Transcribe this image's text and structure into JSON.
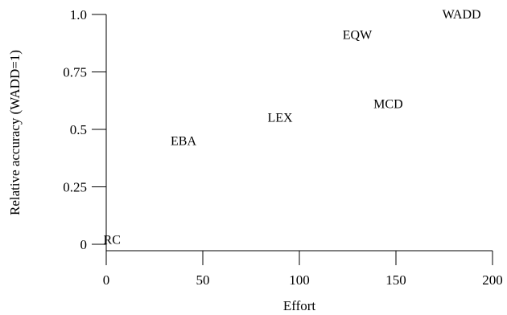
{
  "chart_data": {
    "type": "scatter",
    "title": "",
    "xlabel": "Effort",
    "ylabel": "Relative accuracy (WADD=1)",
    "xlim": [
      0,
      200
    ],
    "ylim": [
      0,
      1.0
    ],
    "grid": false,
    "legend": "none",
    "x_ticks": [
      {
        "value": 0,
        "label": "0"
      },
      {
        "value": 50,
        "label": "50"
      },
      {
        "value": 100,
        "label": "100"
      },
      {
        "value": 150,
        "label": "150"
      },
      {
        "value": 200,
        "label": "200"
      }
    ],
    "y_ticks": [
      {
        "value": 0,
        "label": "0"
      },
      {
        "value": 0.25,
        "label": "0.25"
      },
      {
        "value": 0.5,
        "label": "0.5"
      },
      {
        "value": 0.75,
        "label": "0.75"
      },
      {
        "value": 1.0,
        "label": "1.0"
      }
    ],
    "points": [
      {
        "label": "RC",
        "x": 3,
        "y": 0.02
      },
      {
        "label": "EBA",
        "x": 40,
        "y": 0.45
      },
      {
        "label": "LEX",
        "x": 90,
        "y": 0.55
      },
      {
        "label": "EQW",
        "x": 130,
        "y": 0.91
      },
      {
        "label": "MCD",
        "x": 146,
        "y": 0.61
      },
      {
        "label": "WADD",
        "x": 184,
        "y": 1.0
      }
    ],
    "marker": "text-label",
    "color": "#000000"
  }
}
